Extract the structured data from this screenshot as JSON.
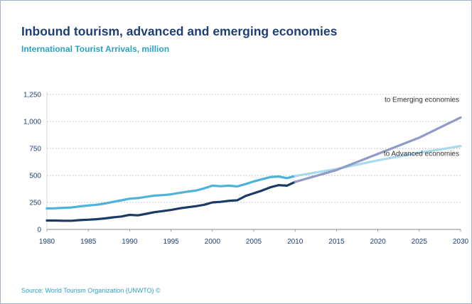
{
  "header": {
    "title": "Inbound tourism, advanced and emerging economies",
    "subtitle": "International Tourist Arrivals, million"
  },
  "footer": {
    "source": "Source: World Tourism Organization (UNWTO) ©"
  },
  "chart_data": {
    "type": "line",
    "title": "Inbound tourism, advanced and emerging economies",
    "subtitle": "International Tourist Arrivals, million",
    "xlim": [
      1980,
      2030
    ],
    "ylim": [
      0,
      1250
    ],
    "xticks": [
      1980,
      1985,
      1990,
      1995,
      2000,
      2005,
      2010,
      2015,
      2020,
      2025,
      2030
    ],
    "yticks": [
      0,
      250,
      500,
      750,
      1000,
      1250
    ],
    "ytick_labels": [
      "0",
      "250",
      "500",
      "750",
      "1,000",
      "1,250"
    ],
    "grid": "horizontal dotted",
    "colors": {
      "advanced_actual": "#4db3da",
      "emerging_actual": "#1c3a66",
      "advanced_forecast": "#a9d9ee",
      "emerging_forecast": "#8f9bc7"
    },
    "series": [
      {
        "segment": "advanced-actual",
        "x": [
          1980,
          1981,
          1982,
          1983,
          1984,
          1985,
          1986,
          1987,
          1988,
          1989,
          1990,
          1991,
          1992,
          1993,
          1994,
          1995,
          1996,
          1997,
          1998,
          1999,
          2000,
          2001,
          2002,
          2003,
          2004,
          2005,
          2006,
          2007,
          2008,
          2009,
          2010
        ],
        "values": [
          195,
          196,
          200,
          203,
          214,
          222,
          228,
          240,
          255,
          270,
          285,
          290,
          302,
          313,
          318,
          325,
          338,
          350,
          360,
          380,
          405,
          400,
          405,
          398,
          420,
          445,
          465,
          485,
          490,
          475,
          495
        ]
      },
      {
        "segment": "emerging-actual",
        "x": [
          1980,
          1981,
          1982,
          1983,
          1984,
          1985,
          1986,
          1987,
          1988,
          1989,
          1990,
          1991,
          1992,
          1993,
          1994,
          1995,
          1996,
          1997,
          1998,
          1999,
          2000,
          2001,
          2002,
          2003,
          2004,
          2005,
          2006,
          2007,
          2008,
          2009,
          2010
        ],
        "values": [
          82,
          82,
          80,
          80,
          86,
          90,
          95,
          102,
          112,
          120,
          135,
          130,
          145,
          160,
          170,
          180,
          195,
          205,
          215,
          228,
          250,
          255,
          265,
          270,
          310,
          335,
          360,
          390,
          410,
          405,
          440
        ]
      },
      {
        "name": "to Advanced economies",
        "segment": "advanced-forecast",
        "x": [
          2010,
          2015,
          2020,
          2025,
          2030
        ],
        "values": [
          495,
          560,
          640,
          710,
          772
        ]
      },
      {
        "name": "to Emerging economies",
        "segment": "emerging-forecast",
        "x": [
          2010,
          2015,
          2020,
          2025,
          2030
        ],
        "values": [
          440,
          550,
          700,
          850,
          1037
        ]
      }
    ],
    "annotations": [
      {
        "text": "to Emerging economies",
        "at": [
          2030,
          1037
        ]
      },
      {
        "text": "to Advanced economies",
        "at": [
          2030,
          772
        ]
      }
    ]
  }
}
